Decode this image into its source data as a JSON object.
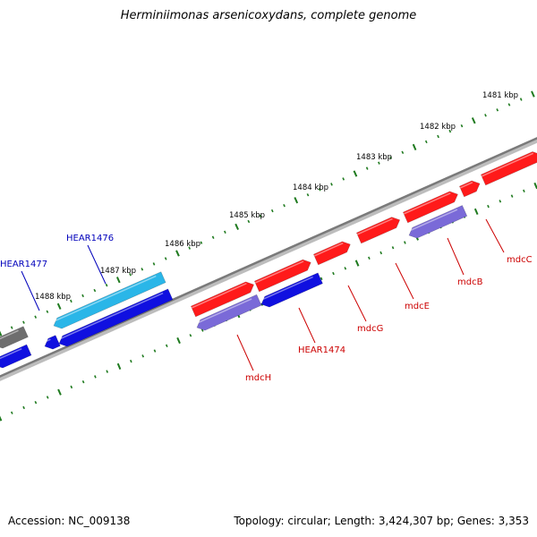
{
  "map": {
    "title": "Herminiimonas arsenicoxydans, complete genome",
    "accession": "Accession: NC_009138",
    "genome_info": "Topology: circular; Length: 3,424,307 bp; Genes: 3,353"
  },
  "colors": {
    "background": "#ffffff",
    "backbone": "#8a8a8a",
    "tick": "#1f7a1f",
    "forward_gene": "#ff1a1a",
    "reverse_gene": "#1010e0",
    "reverse_gene_light": "#2ab6e8",
    "reverse_gene_pale": "#7a6ad8",
    "gray_gene": "#6e6e6e",
    "label_red": "#cc0000",
    "label_blue": "#0000bb"
  },
  "scale_labels": [
    "1481 kbp",
    "1482 kbp",
    "1483 kbp",
    "1484 kbp",
    "1485 kbp",
    "1486 kbp",
    "1487 kbp",
    "1488 kbp"
  ],
  "gene_labels": [
    "mdcC",
    "mdcB",
    "mdcE",
    "mdcG",
    "HEAR1474",
    "mdcH",
    "HEAR1476",
    "HEAR1477"
  ]
}
